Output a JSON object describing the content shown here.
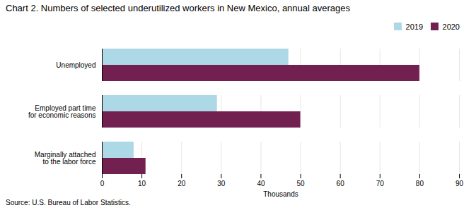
{
  "chart_data": {
    "type": "bar",
    "orientation": "horizontal",
    "title": "Chart 2. Numbers of selected underutilized workers in New Mexico, annual averages",
    "categories": [
      "Marginally attached\nto the labor force",
      "Employed part time\nfor economic reasons",
      "Unemployed"
    ],
    "series": [
      {
        "name": "2019",
        "color": "#add8e6",
        "values": [
          8,
          29,
          47
        ]
      },
      {
        "name": "2020",
        "color": "#722050",
        "values": [
          11,
          50,
          80
        ]
      }
    ],
    "xlim": [
      0,
      90
    ],
    "xticks": [
      0,
      10,
      20,
      30,
      40,
      50,
      60,
      70,
      80,
      90
    ],
    "xlabel": "Thousands",
    "grid": true,
    "legend": "upper right",
    "annotations": [
      "Source: U.S. Bureau of Labor Statistics."
    ]
  }
}
